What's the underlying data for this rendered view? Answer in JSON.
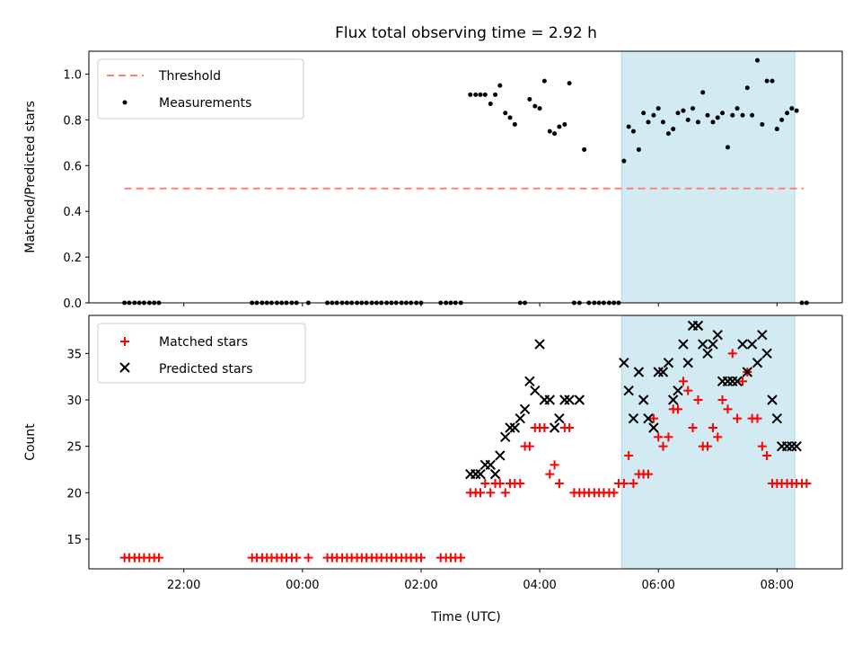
{
  "chart_data": [
    {
      "type": "scatter",
      "title": "Flux total observing time = 2.92 h",
      "ylabel": "Matched/Predicted stars",
      "xlabel": "",
      "x_ticks": [
        "22:00",
        "00:00",
        "02:00",
        "04:00",
        "06:00",
        "08:00"
      ],
      "xlim_hours": [
        -3.6,
        9.1
      ],
      "ylim": [
        0,
        1.1
      ],
      "y_ticks": [
        "0.0",
        "0.2",
        "0.4",
        "0.6",
        "0.8",
        "1.0"
      ],
      "grid": false,
      "legend_position": "top-left",
      "highlight_span_hours": [
        5.38,
        8.3
      ],
      "highlight_color": "#add8e6",
      "threshold": {
        "name": "Threshold",
        "value": 0.5,
        "x_range_hours": [
          -3.0,
          8.45
        ],
        "color": "#ff7f7f",
        "style": "dashed"
      },
      "series": [
        {
          "name": "Measurements",
          "color": "#000000",
          "x_hours": [
            -3.0,
            -2.92,
            -2.83,
            -2.75,
            -2.67,
            -2.58,
            -2.5,
            -2.42,
            -0.85,
            -0.77,
            -0.68,
            -0.6,
            -0.52,
            -0.43,
            -0.35,
            -0.27,
            -0.18,
            -0.1,
            0.1,
            0.42,
            0.5,
            0.58,
            0.67,
            0.75,
            0.83,
            0.92,
            1.0,
            1.08,
            1.17,
            1.25,
            1.33,
            1.42,
            1.5,
            1.58,
            1.67,
            1.75,
            1.83,
            1.92,
            2.0,
            2.33,
            2.42,
            2.5,
            2.58,
            2.67,
            2.83,
            2.92,
            3.0,
            3.08,
            3.17,
            3.25,
            3.33,
            3.42,
            3.5,
            3.58,
            3.67,
            3.75,
            3.83,
            3.92,
            4.0,
            4.08,
            4.17,
            4.25,
            4.33,
            4.42,
            4.5,
            4.58,
            4.67,
            4.75,
            4.83,
            4.92,
            5.0,
            5.08,
            5.17,
            5.25,
            5.33,
            5.42,
            5.5,
            5.58,
            5.67,
            5.75,
            5.83,
            5.92,
            6.0,
            6.08,
            6.17,
            6.25,
            6.33,
            6.42,
            6.5,
            6.58,
            6.67,
            6.75,
            6.83,
            6.92,
            7.0,
            7.08,
            7.17,
            7.25,
            7.33,
            7.42,
            7.5,
            7.58,
            7.67,
            7.75,
            7.83,
            7.92,
            8.0,
            8.08,
            8.17,
            8.25,
            8.33,
            8.42,
            8.5
          ],
          "y": [
            0,
            0,
            0,
            0,
            0,
            0,
            0,
            0,
            0,
            0,
            0,
            0,
            0,
            0,
            0,
            0,
            0,
            0,
            0,
            0,
            0,
            0,
            0,
            0,
            0,
            0,
            0,
            0,
            0,
            0,
            0,
            0,
            0,
            0,
            0,
            0,
            0,
            0,
            0,
            0,
            0,
            0,
            0,
            0,
            0.91,
            0.91,
            0.91,
            0.91,
            0.87,
            0.91,
            0.95,
            0.83,
            0.81,
            0.78,
            0,
            0,
            0.89,
            0.86,
            0.85,
            0.97,
            0.75,
            0.74,
            0.77,
            0.78,
            0.96,
            0,
            0,
            0.67,
            0,
            0,
            0,
            0,
            0,
            0,
            0,
            0.62,
            0.77,
            0.75,
            0.67,
            0.83,
            0.79,
            0.82,
            0.85,
            0.79,
            0.74,
            0.76,
            0.83,
            0.84,
            0.8,
            0.85,
            0.79,
            0.92,
            0.82,
            0.79,
            0.81,
            0.83,
            0.68,
            0.82,
            0.85,
            0.82,
            0.94,
            0.82,
            1.06,
            0.78,
            0.97,
            0.97,
            0.76,
            0.8,
            0.83,
            0.85,
            0.84,
            0,
            0
          ]
        }
      ]
    },
    {
      "type": "scatter",
      "title": "",
      "ylabel": "Count",
      "xlabel": "Time (UTC)",
      "x_ticks": [
        "22:00",
        "00:00",
        "02:00",
        "04:00",
        "06:00",
        "08:00"
      ],
      "xlim_hours": [
        -3.6,
        9.1
      ],
      "ylim": [
        11.8,
        39.1
      ],
      "y_ticks": [
        "15",
        "20",
        "25",
        "30",
        "35"
      ],
      "grid": false,
      "legend_position": "top-left",
      "highlight_span_hours": [
        5.38,
        8.3
      ],
      "highlight_color": "#add8e6",
      "series": [
        {
          "name": "Matched stars",
          "marker": "plus",
          "color": "#ff0000",
          "x_hours": [
            -3.0,
            -2.92,
            -2.83,
            -2.75,
            -2.67,
            -2.58,
            -2.5,
            -2.42,
            -0.85,
            -0.77,
            -0.68,
            -0.6,
            -0.52,
            -0.43,
            -0.35,
            -0.27,
            -0.18,
            -0.1,
            0.1,
            0.42,
            0.5,
            0.58,
            0.67,
            0.75,
            0.83,
            0.92,
            1.0,
            1.08,
            1.17,
            1.25,
            1.33,
            1.42,
            1.5,
            1.58,
            1.67,
            1.75,
            1.83,
            1.92,
            2.0,
            2.33,
            2.42,
            2.5,
            2.58,
            2.67,
            2.83,
            2.92,
            3.0,
            3.08,
            3.17,
            3.25,
            3.33,
            3.42,
            3.5,
            3.58,
            3.67,
            3.75,
            3.83,
            3.92,
            4.0,
            4.08,
            4.17,
            4.25,
            4.33,
            4.42,
            4.5,
            4.58,
            4.67,
            4.75,
            4.83,
            4.92,
            5.0,
            5.08,
            5.17,
            5.25,
            5.33,
            5.42,
            5.5,
            5.58,
            5.67,
            5.75,
            5.83,
            5.92,
            6.0,
            6.08,
            6.17,
            6.25,
            6.33,
            6.42,
            6.5,
            6.58,
            6.67,
            6.75,
            6.83,
            6.92,
            7.0,
            7.08,
            7.17,
            7.25,
            7.33,
            7.42,
            7.5,
            7.58,
            7.67,
            7.75,
            7.83,
            7.92,
            8.0,
            8.08,
            8.17,
            8.25,
            8.33,
            8.42,
            8.5
          ],
          "y": [
            13,
            13,
            13,
            13,
            13,
            13,
            13,
            13,
            13,
            13,
            13,
            13,
            13,
            13,
            13,
            13,
            13,
            13,
            13,
            13,
            13,
            13,
            13,
            13,
            13,
            13,
            13,
            13,
            13,
            13,
            13,
            13,
            13,
            13,
            13,
            13,
            13,
            13,
            13,
            13,
            13,
            13,
            13,
            13,
            20,
            20,
            20,
            21,
            20,
            21,
            21,
            20,
            21,
            21,
            21,
            25,
            25,
            27,
            27,
            27,
            22,
            23,
            21,
            27,
            27,
            20,
            20,
            20,
            20,
            20,
            20,
            20,
            20,
            20,
            21,
            21,
            24,
            21,
            22,
            22,
            22,
            28,
            26,
            25,
            26,
            29,
            29,
            32,
            31,
            27,
            30,
            25,
            25,
            27,
            26,
            30,
            29,
            35,
            28,
            32,
            33,
            28,
            28,
            25,
            24,
            21,
            21,
            21,
            21,
            21,
            21,
            21,
            21
          ],
          "display_override_note": ""
        },
        {
          "name": "Predicted stars",
          "marker": "x",
          "color": "#000000",
          "x_hours": [
            2.83,
            2.92,
            3.0,
            3.08,
            3.17,
            3.25,
            3.33,
            3.42,
            3.5,
            3.58,
            3.67,
            3.75,
            3.83,
            3.92,
            4.0,
            4.08,
            4.17,
            4.25,
            4.33,
            4.42,
            4.5,
            4.67,
            5.42,
            5.5,
            5.58,
            5.67,
            5.75,
            5.83,
            5.92,
            6.0,
            6.08,
            6.17,
            6.25,
            6.33,
            6.42,
            6.5,
            6.58,
            6.67,
            6.75,
            6.83,
            6.92,
            7.0,
            7.08,
            7.17,
            7.25,
            7.33,
            7.42,
            7.5,
            7.58,
            7.67,
            7.75,
            7.83,
            7.92,
            8.0,
            8.08,
            8.17,
            8.25,
            8.33
          ],
          "y": [
            22,
            22,
            22,
            23,
            23,
            22,
            24,
            26,
            27,
            27,
            28,
            29,
            32,
            31,
            36,
            30,
            30,
            27,
            28,
            30,
            30,
            30,
            34,
            31,
            28,
            33,
            30,
            28,
            27,
            33,
            33,
            34,
            30,
            31,
            36,
            34,
            38,
            38,
            36,
            35,
            36,
            37,
            32,
            32,
            32,
            32,
            36,
            33,
            36,
            34,
            37,
            35,
            30,
            28,
            25,
            25,
            25,
            25
          ]
        }
      ]
    }
  ]
}
